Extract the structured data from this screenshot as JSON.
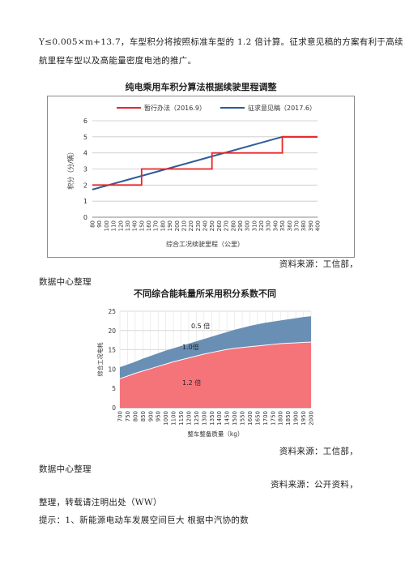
{
  "paragraph": {
    "line1": "Y≤0.005×m+13.7，车型积分将按照标准车型的 1.2 倍计算。征求意见稿的方案有利于高续",
    "line2": "航里程车型以及高能量密度电池的推广。"
  },
  "source1": {
    "right": "资料来源：工信部，",
    "left": "数据中心整理"
  },
  "source2": {
    "right": "资料来源：工信部，",
    "left": "数据中心整理"
  },
  "source3": {
    "right": "资料来源：公开资料，",
    "left": "整理，转载请注明出处（WW）"
  },
  "tip": "提示：1、新能源电动车发展空间巨大 根据中汽协的数",
  "chart_data": [
    {
      "type": "line",
      "title": "纯电乘用车积分算法根据续驶里程调整",
      "xlabel": "综合工况续驶里程（公里）",
      "ylabel": "积分（分/辆）",
      "x": [
        80,
        90,
        100,
        110,
        120,
        130,
        140,
        150,
        160,
        170,
        180,
        190,
        200,
        210,
        220,
        230,
        240,
        250,
        260,
        270,
        280,
        290,
        300,
        310,
        320,
        330,
        340,
        350,
        360,
        370,
        380,
        390,
        400
      ],
      "ylim": [
        0,
        6
      ],
      "yticks": [
        0,
        1,
        2,
        3,
        4,
        5,
        6
      ],
      "grid": true,
      "legend": "top",
      "series": [
        {
          "name": "暂行办法（2016.9）",
          "color": "#e8262a",
          "step_points": [
            [
              80,
              2
            ],
            [
              150,
              2
            ],
            [
              150,
              3
            ],
            [
              250,
              3
            ],
            [
              250,
              4
            ],
            [
              350,
              4
            ],
            [
              350,
              5
            ],
            [
              400,
              5
            ]
          ]
        },
        {
          "name": "征求意见稿（2017.6）",
          "color": "#2e5b9a",
          "points": [
            [
              80,
              1.72
            ],
            [
              350,
              5
            ],
            [
              400,
              5
            ]
          ]
        }
      ]
    },
    {
      "type": "area",
      "title": "不同综合能耗量所采用积分系数不同",
      "xlabel": "整车整备质量（kg）",
      "ylabel": "综合工况电耗",
      "categories": [
        "700",
        "750",
        "800",
        "850",
        "900",
        "950",
        "1000",
        "1100",
        "1150",
        "1200",
        "1250",
        "1300",
        "1350",
        "1400",
        "1450",
        "1500",
        "1550",
        "1600",
        "1650",
        "1700",
        "1750",
        "1800",
        "1850",
        "1900",
        "1950",
        "2000"
      ],
      "ylim": [
        0,
        25
      ],
      "yticks": [
        0,
        5,
        10,
        15,
        20,
        25
      ],
      "annotations": [
        "0.5 倍",
        "1.0倍",
        "1.2 倍"
      ],
      "series": [
        {
          "name": "1.2 倍",
          "color": "#f4747a",
          "values": [
            7.5,
            8.2,
            8.9,
            9.5,
            10.1,
            10.7,
            11.3,
            11.9,
            12.4,
            12.9,
            13.4,
            13.9,
            14.3,
            14.7,
            15.1,
            15.4,
            15.6,
            15.8,
            16.0,
            16.2,
            16.4,
            16.6,
            16.7,
            16.8,
            16.9,
            17.0
          ]
        },
        {
          "name": "1.0倍",
          "color": "#6a8fb4",
          "values": [
            10.5,
            11.2,
            11.9,
            12.7,
            13.4,
            14.1,
            14.8,
            15.4,
            16.0,
            16.6,
            17.2,
            17.8,
            18.4,
            19.0,
            19.6,
            20.2,
            20.7,
            21.2,
            21.6,
            22.0,
            22.3,
            22.6,
            22.9,
            23.2,
            23.5,
            23.7
          ]
        }
      ]
    }
  ]
}
